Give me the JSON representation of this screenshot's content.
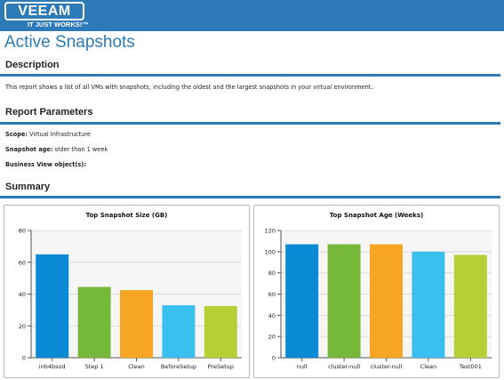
{
  "header": {
    "logo_text": "VEEAM",
    "logo_tagline": "IT JUST WORKS!™",
    "brand_color": "#2e7ab8"
  },
  "page_title": "Active Snapshots",
  "description": {
    "heading": "Description",
    "text": "This report shows a list of all VMs with snapshots, including the oldest and the largest snapshots in your virtual environment."
  },
  "parameters": {
    "heading": "Report Parameters",
    "scope_label": "Scope:",
    "scope_value": "Virtual Infrastructure",
    "age_label": "Snapshot age:",
    "age_value": "older than 1 week",
    "bv_label": "Business View object(s):",
    "bv_value": ""
  },
  "summary": {
    "heading": "Summary"
  },
  "chart_data": [
    {
      "type": "bar",
      "title": "Top Snapshot Size (GB)",
      "categories": [
        "inb4bsod",
        "Step 1",
        "Clean",
        "BeforeSetup",
        "PreSetup"
      ],
      "values": [
        65,
        44.5,
        42.5,
        33,
        32.5
      ],
      "colors": [
        "#0a8ad4",
        "#76b83a",
        "#f6a623",
        "#3bbfef",
        "#b5cf35"
      ],
      "ylim": [
        0,
        80
      ],
      "yticks": [
        0,
        20,
        40,
        60,
        80
      ],
      "grid": true,
      "xlabel": "",
      "ylabel": ""
    },
    {
      "type": "bar",
      "title": "Top Snapshot Age (Weeks)",
      "categories": [
        "null",
        "cluster-null",
        "cluster-null",
        "Clean",
        "Test001"
      ],
      "values": [
        107,
        107,
        107,
        100,
        97
      ],
      "colors": [
        "#0a8ad4",
        "#76b83a",
        "#f6a623",
        "#3bbfef",
        "#b5cf35"
      ],
      "ylim": [
        0,
        120
      ],
      "yticks": [
        0,
        20,
        40,
        60,
        80,
        100,
        120
      ],
      "grid": true,
      "xlabel": "",
      "ylabel": ""
    }
  ]
}
